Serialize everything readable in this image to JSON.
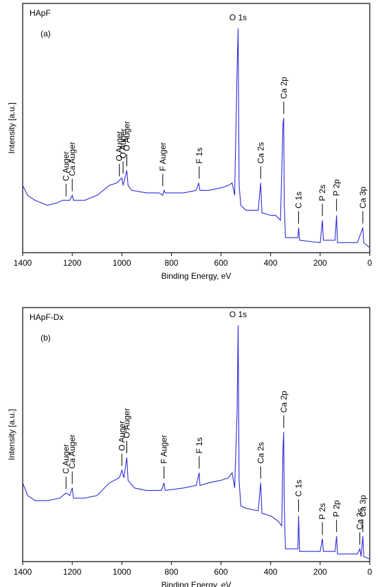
{
  "chart_data": [
    {
      "type": "line",
      "title": "HApF",
      "panel_label": "(a)",
      "xlabel": "Binding Energy, eV",
      "ylabel": "Intensity [a.u.]",
      "xlim": [
        1400,
        0
      ],
      "xticks": [
        1400,
        1200,
        1000,
        800,
        600,
        400,
        200,
        0
      ],
      "ylim": [
        0,
        100
      ],
      "color": "#2b2bd6",
      "x": [
        1400,
        1380,
        1350,
        1300,
        1260,
        1240,
        1225,
        1210,
        1200,
        1195,
        1150,
        1100,
        1050,
        1020,
        1010,
        1000,
        995,
        985,
        980,
        975,
        960,
        900,
        850,
        835,
        830,
        825,
        750,
        700,
        690,
        685,
        650,
        600,
        570,
        555,
        545,
        535,
        531,
        527,
        520,
        500,
        450,
        440,
        435,
        400,
        380,
        360,
        350,
        347,
        345,
        340,
        300,
        290,
        287,
        283,
        200,
        191,
        187,
        140,
        134,
        130,
        50,
        28,
        24,
        0
      ],
      "values": [
        27,
        23,
        21,
        19,
        20,
        21,
        21,
        21,
        23,
        21,
        21,
        23,
        27,
        28,
        29,
        30,
        27,
        31,
        33,
        27,
        25,
        24,
        24,
        23,
        25,
        24,
        24,
        25,
        28,
        25,
        25,
        26,
        27,
        28,
        23,
        74,
        90,
        27,
        19,
        17,
        17,
        28,
        16,
        15,
        15,
        13,
        52,
        54,
        19,
        6,
        6,
        6,
        10,
        5,
        4,
        13,
        5,
        5,
        15,
        4,
        4,
        10,
        4,
        2
      ],
      "annotations": [
        {
          "text": "C Auger",
          "x": 1225
        },
        {
          "text": "Ca Auger",
          "x": 1200
        },
        {
          "text": "O Auger",
          "x": 1010
        },
        {
          "text": "O Auger",
          "x": 995
        },
        {
          "text": "O Auger",
          "x": 980
        },
        {
          "text": "F Auger",
          "x": 835
        },
        {
          "text": "F 1s",
          "x": 688
        },
        {
          "text": "O 1s",
          "x": 531
        },
        {
          "text": "Ca 2s",
          "x": 440
        },
        {
          "text": "Ca 2p",
          "x": 347
        },
        {
          "text": "C 1s",
          "x": 287
        },
        {
          "text": "P 2s",
          "x": 191
        },
        {
          "text": "P 2p",
          "x": 134
        },
        {
          "text": "Ca 3p",
          "x": 28
        }
      ]
    },
    {
      "type": "line",
      "title": "HApF-Dx",
      "panel_label": "(b)",
      "xlabel": "Binding Energy, eV",
      "ylabel": "Intensity [a.u.]",
      "xlim": [
        1400,
        0
      ],
      "xticks": [
        1400,
        1200,
        1000,
        800,
        600,
        400,
        200,
        0
      ],
      "ylim": [
        0,
        100
      ],
      "color": "#2b2bd6",
      "x": [
        1400,
        1380,
        1350,
        1300,
        1250,
        1225,
        1210,
        1200,
        1195,
        1150,
        1100,
        1050,
        1010,
        1000,
        992,
        980,
        975,
        950,
        900,
        840,
        830,
        825,
        750,
        700,
        688,
        685,
        650,
        600,
        570,
        555,
        545,
        535,
        531,
        527,
        520,
        500,
        450,
        440,
        435,
        400,
        370,
        355,
        350,
        347,
        345,
        340,
        300,
        290,
        287,
        283,
        200,
        191,
        187,
        140,
        134,
        130,
        50,
        40,
        35,
        28,
        24,
        0
      ],
      "values": [
        31,
        26,
        24,
        24,
        25,
        27,
        26,
        29,
        25,
        25,
        26,
        31,
        33,
        36,
        33,
        41,
        32,
        29,
        28,
        28,
        31,
        28,
        29,
        30,
        35,
        30,
        31,
        32,
        33,
        35,
        29,
        59,
        93,
        32,
        22,
        21,
        20,
        31,
        19,
        18,
        16,
        14,
        45,
        51,
        21,
        5,
        5,
        5,
        18,
        4,
        4,
        9,
        4,
        4,
        10,
        3,
        3,
        5,
        2,
        10,
        2,
        1
      ],
      "annotations": [
        {
          "text": "C Auger",
          "x": 1225
        },
        {
          "text": "Ca Auger",
          "x": 1200
        },
        {
          "text": "O Auger",
          "x": 1000
        },
        {
          "text": "O Auger",
          "x": 980
        },
        {
          "text": "F Auger",
          "x": 830
        },
        {
          "text": "F 1s",
          "x": 688
        },
        {
          "text": "O 1s",
          "x": 531
        },
        {
          "text": "Ca 2s",
          "x": 440
        },
        {
          "text": "Ca 2p",
          "x": 347
        },
        {
          "text": "C 1s",
          "x": 287
        },
        {
          "text": "P 2s",
          "x": 191
        },
        {
          "text": "P 2p",
          "x": 134
        },
        {
          "text": "Ca 3s",
          "x": 40
        },
        {
          "text": "Ca 3p",
          "x": 28
        }
      ]
    }
  ]
}
